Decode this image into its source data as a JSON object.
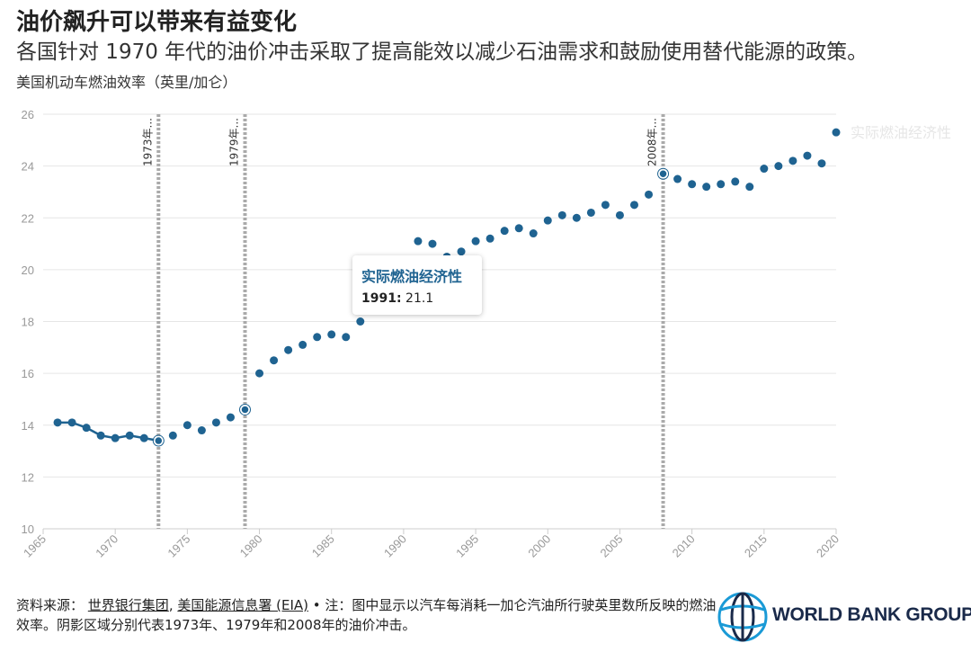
{
  "header": {
    "title": "油价飙升可以带来有益变化",
    "subtitle": "各国针对 1970 年代的油价冲击采取了提高能效以减少石油需求和鼓励使用替代能源的政策。",
    "y_axis_title": "美国机动车燃油效率（英里/加仑）"
  },
  "chart_data": {
    "type": "scatter",
    "title": "油价飙升可以带来有益变化",
    "ylabel": "美国机动车燃油效率（英里/加仑）",
    "xlabel": "",
    "xlim": [
      1965,
      2020
    ],
    "ylim": [
      10,
      26
    ],
    "x_ticks": [
      1965,
      1970,
      1975,
      1980,
      1985,
      1990,
      1995,
      2000,
      2005,
      2010,
      2015,
      2020
    ],
    "y_ticks": [
      10,
      12,
      14,
      16,
      18,
      20,
      22,
      24,
      26
    ],
    "series": [
      {
        "name": "实际燃油经济性",
        "color": "#1f6391",
        "x": [
          1966,
          1967,
          1968,
          1969,
          1970,
          1971,
          1972,
          1973,
          1974,
          1975,
          1976,
          1977,
          1978,
          1979,
          1980,
          1981,
          1982,
          1983,
          1984,
          1985,
          1986,
          1987,
          1991,
          1992,
          1993,
          1994,
          1995,
          1996,
          1997,
          1998,
          1999,
          2000,
          2001,
          2002,
          2003,
          2004,
          2005,
          2006,
          2007,
          2008,
          2009,
          2010,
          2011,
          2012,
          2013,
          2014,
          2015,
          2016,
          2017,
          2018,
          2019,
          2020
        ],
        "values": [
          14.1,
          14.1,
          13.9,
          13.6,
          13.5,
          13.6,
          13.5,
          13.4,
          13.6,
          14.0,
          13.8,
          14.1,
          14.3,
          14.6,
          16.0,
          16.5,
          16.9,
          17.1,
          17.4,
          17.5,
          17.4,
          18.0,
          21.1,
          21.0,
          20.5,
          20.7,
          21.1,
          21.2,
          21.5,
          21.6,
          21.4,
          21.9,
          22.1,
          22.0,
          22.2,
          22.5,
          22.1,
          22.5,
          22.9,
          23.7,
          23.5,
          23.3,
          23.2,
          23.3,
          23.4,
          23.2,
          23.9,
          24.0,
          24.2,
          24.4,
          24.1,
          25.3
        ]
      }
    ],
    "shocks": [
      {
        "year": 1973,
        "label": "1973年..."
      },
      {
        "year": 1979,
        "label": "1979年..."
      },
      {
        "year": 2008,
        "label": "2008年..."
      }
    ],
    "highlighted_points": [
      1973,
      1979,
      2008
    ],
    "tooltip": {
      "series": "实际燃油经济性",
      "year": "1991",
      "year_suffix": ":",
      "value": "21.1"
    },
    "series_end_label": "实际燃油经济性"
  },
  "footer": {
    "source_label": "资料来源：",
    "source_org1": "世界银行集团",
    "source_sep": ",",
    "source_org2": "美国能源信息署 (EIA)",
    "note": "• 注：图中显示以汽车每消耗一加仑汽油所行驶英里数所反映的燃油效率。阴影区域分别代表1973年、1979年和2008年的油价冲击。"
  },
  "logo": {
    "text": "WORLD BANK GROUP"
  }
}
